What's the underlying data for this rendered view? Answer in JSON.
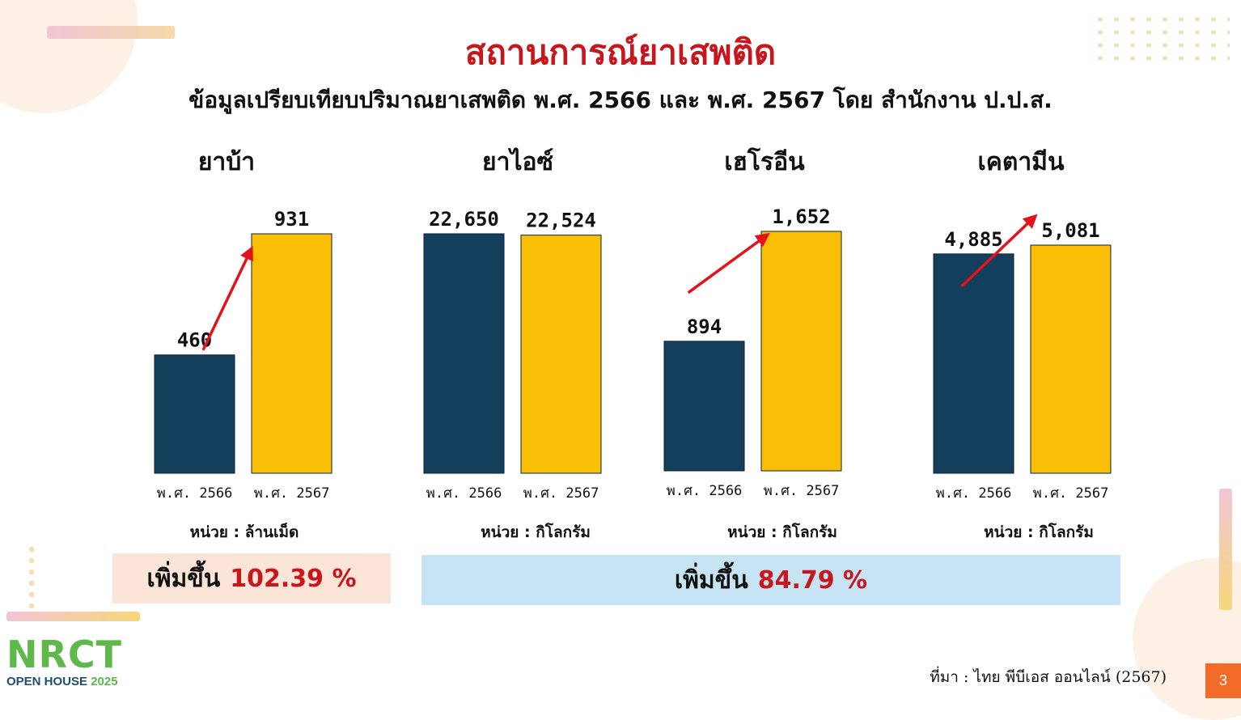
{
  "title": "สถานการณ์ยาเสพติด",
  "subtitle": "ข้อมูลเปรียบเทียบปริมาณยาเสพติด พ.ศ. 2566 และ พ.ศ. 2567  โดย สำนักงาน ป.ป.ส.",
  "colors": {
    "bar_2566": "#133f5c",
    "bar_2567": "#fbbe07",
    "arrow": "#e3121b",
    "title": "#c8161d"
  },
  "chart_data": [
    {
      "type": "bar",
      "title": "ยาบ้า",
      "categories": [
        "พ.ศ. 2566",
        "พ.ศ. 2567"
      ],
      "values": [
        460,
        931
      ],
      "labels": [
        "460",
        "931"
      ],
      "unit_text": "หน่วย : ล้านเม็ด",
      "trend_arrow": true
    },
    {
      "type": "bar",
      "title": "ยาไอซ์",
      "categories": [
        "พ.ศ. 2566",
        "พ.ศ. 2567"
      ],
      "values": [
        22650,
        22524
      ],
      "labels": [
        "22,650",
        "22,524"
      ],
      "unit_text": "หน่วย :  กิโลกรัม",
      "trend_arrow": false
    },
    {
      "type": "bar",
      "title": "เฮโรอีน",
      "categories": [
        "พ.ศ. 2566",
        "พ.ศ. 2567"
      ],
      "values": [
        894,
        1652
      ],
      "labels": [
        "894",
        "1,652"
      ],
      "unit_text": "หน่วย :  กิโลกรัม",
      "trend_arrow": true
    },
    {
      "type": "bar",
      "title": "เคตามีน",
      "categories": [
        "พ.ศ. 2566",
        "พ.ศ. 2567"
      ],
      "values": [
        4885,
        5081
      ],
      "labels": [
        "4,885",
        "5,081"
      ],
      "unit_text": "หน่วย :  กิโลกรัม",
      "trend_arrow": true
    }
  ],
  "banners": [
    {
      "label": "เพิ่มขึ้น",
      "value": "102.39 %"
    },
    {
      "label": "เพิ่มขึ้น",
      "value": "84.79 %"
    }
  ],
  "source": "ที่มา : ไทย พีบีเอส ออนไลน์ (2567)",
  "page_number": "3",
  "logo": {
    "name": "NRCT",
    "subtitle": "OPEN HOUSE",
    "year": "2025"
  }
}
